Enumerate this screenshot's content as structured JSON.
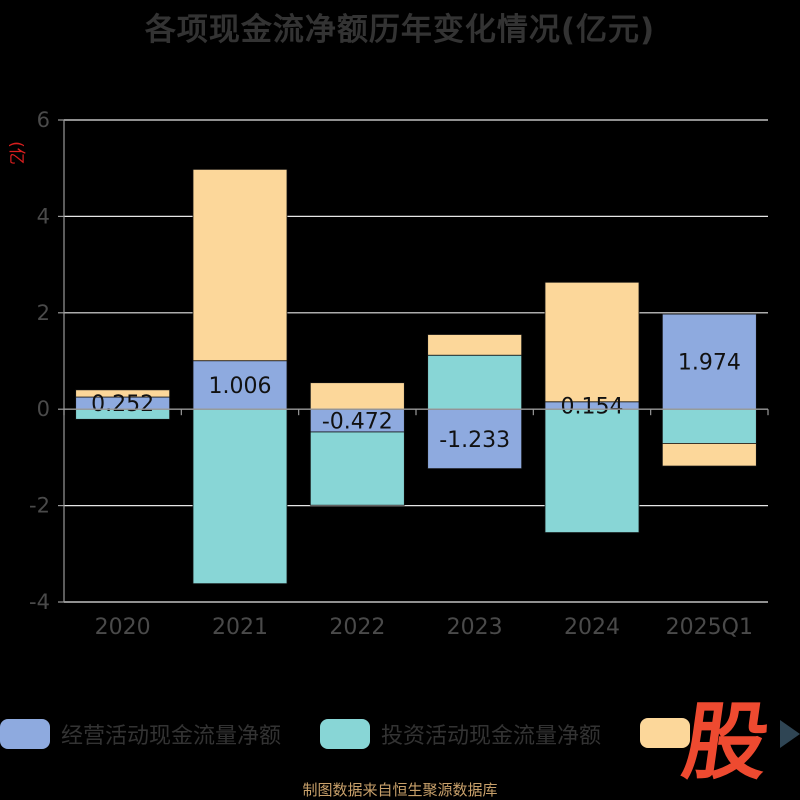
{
  "title": "各项现金流净额历年变化情况(亿元)",
  "source": "制图数据来自恒生聚源数据库",
  "logo_text": "股",
  "legend_next_icon": "triangle-right-icon",
  "colors": {
    "operating": "#8eaadf",
    "investing": "#88d6d6",
    "financing": "#fcd79a",
    "grid": "#e6e6e6",
    "axis": "#9a9a9a",
    "tick_label": "#4a4a4a"
  },
  "chart_data": {
    "type": "bar",
    "stacked": true,
    "title": "各项现金流净额历年变化情况(亿元)",
    "ylabel": "(亿元)",
    "categories": [
      "2020",
      "2021",
      "2022",
      "2023",
      "2024",
      "2025Q1"
    ],
    "ylim": [
      -4,
      6
    ],
    "yticks": [
      -4,
      -2,
      0,
      2,
      4,
      6
    ],
    "grid": true,
    "legend_position": "bottom",
    "series": [
      {
        "name": "经营活动现金流量净额",
        "color": "#8eaadf",
        "values": [
          0.252,
          1.006,
          -0.472,
          -1.233,
          0.154,
          1.974
        ],
        "labels": [
          "0.252",
          "1.006",
          "-0.472",
          "-1.233",
          "0.154",
          "1.974"
        ]
      },
      {
        "name": "投资活动现金流量净额",
        "color": "#88d6d6",
        "values": [
          -0.21,
          -3.62,
          -1.52,
          1.12,
          -2.56,
          -0.71
        ]
      },
      {
        "name": "",
        "color": "#fcd79a",
        "values": [
          0.15,
          3.97,
          0.55,
          0.43,
          2.48,
          -0.47
        ]
      }
    ]
  }
}
